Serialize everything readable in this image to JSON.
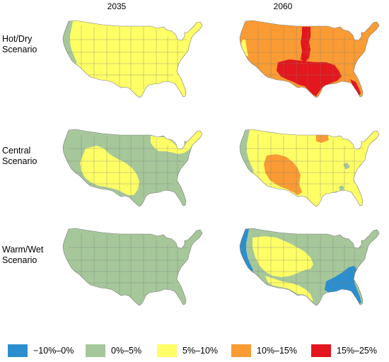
{
  "columns": [
    "2035",
    "2060"
  ],
  "rows": [
    {
      "label_line1": "Hot/Dry",
      "label_line2": "Scenario"
    },
    {
      "label_line1": "Central",
      "label_line2": "Scenario"
    },
    {
      "label_line1": "Warm/Wet",
      "label_line2": "Scenario"
    }
  ],
  "colors": {
    "blue": "#2b8fcf",
    "green": "#a6c79a",
    "yellow": "#ffff66",
    "orange": "#fb9b33",
    "red": "#e3171d",
    "state_line": "#7b7b7b"
  },
  "legend": [
    {
      "label": "−10%–0%",
      "color": "#2b8fcf"
    },
    {
      "label": "0%–5%",
      "color": "#a6c79a"
    },
    {
      "label": "5%–10%",
      "color": "#ffff66"
    },
    {
      "label": "10%–15%",
      "color": "#fb9b33"
    },
    {
      "label": "15%–25%",
      "color": "#e3171d"
    }
  ],
  "maps": [
    {
      "scenario": "Hot/Dry Scenario",
      "year": "2035",
      "base": "yellow",
      "regions": [
        "west-coast-green"
      ]
    },
    {
      "scenario": "Hot/Dry Scenario",
      "year": "2060",
      "base": "orange",
      "regions": [
        "central-red",
        "south-red",
        "florida-red",
        "west-coast-yellow"
      ]
    },
    {
      "scenario": "Central Scenario",
      "year": "2035",
      "base": "green",
      "regions": [
        "central-yellow",
        "northeast-yellow"
      ]
    },
    {
      "scenario": "Central Scenario",
      "year": "2060",
      "base": "yellow",
      "regions": [
        "southwest-orange",
        "north-orange",
        "west-coast-green",
        "east-green-spots"
      ]
    },
    {
      "scenario": "Warm/Wet Scenario",
      "year": "2035",
      "base": "green",
      "regions": []
    },
    {
      "scenario": "Warm/Wet Scenario",
      "year": "2060",
      "base": "green",
      "regions": [
        "west-coast-blue",
        "southeast-blue",
        "west-yellow",
        "southwest-yellow"
      ]
    }
  ]
}
